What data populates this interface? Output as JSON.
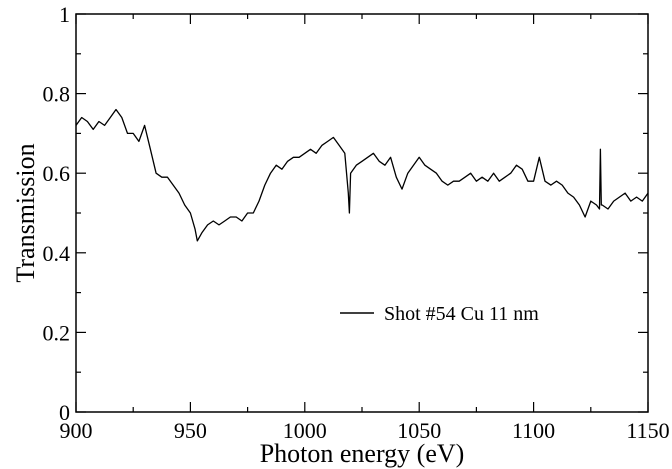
{
  "chart_data": {
    "type": "line",
    "title": "",
    "xlabel": "Photon energy (eV)",
    "ylabel": "Transmission",
    "xlim": [
      900,
      1150
    ],
    "ylim": [
      0,
      1
    ],
    "grid": false,
    "legend_position": "center-right",
    "x_ticks": [
      900,
      950,
      1000,
      1050,
      1100,
      1150
    ],
    "x_tick_labels": [
      "900",
      "950",
      "1000",
      "1050",
      "1100",
      "1150"
    ],
    "y_ticks": [
      0,
      0.2,
      0.4,
      0.6,
      0.8,
      1
    ],
    "y_tick_labels": [
      "0",
      "0.2",
      "0.4",
      "0.6",
      "0.8",
      "1"
    ],
    "series": [
      {
        "name": "Shot #54 Cu 11 nm",
        "color": "#000000",
        "x": [
          900,
          902.5,
          905,
          907.5,
          910,
          912.5,
          915,
          917.5,
          920,
          922.5,
          925,
          927.5,
          930,
          932.5,
          935,
          937.5,
          940,
          942.5,
          945,
          947.5,
          950,
          952,
          953,
          955,
          957.5,
          960,
          962.5,
          965,
          967.5,
          970,
          972.5,
          975,
          977.5,
          980,
          982.5,
          985,
          987.5,
          990,
          992.5,
          995,
          997.5,
          1000,
          1002.5,
          1005,
          1007.5,
          1010,
          1012.5,
          1015,
          1017.5,
          1019,
          1019.5,
          1020,
          1022.5,
          1025,
          1027.5,
          1030,
          1032.5,
          1035,
          1037.5,
          1040,
          1042.5,
          1045,
          1047.5,
          1050,
          1052.5,
          1055,
          1057.5,
          1060,
          1062.5,
          1065,
          1067.5,
          1070,
          1072.5,
          1075,
          1077.5,
          1080,
          1082.5,
          1085,
          1087.5,
          1090,
          1092.5,
          1095,
          1097.5,
          1100,
          1102.5,
          1105,
          1107.5,
          1110,
          1112.5,
          1115,
          1117.5,
          1120,
          1122.5,
          1125,
          1127.5,
          1128.8,
          1129.2,
          1129.6,
          1130,
          1132.5,
          1135,
          1137.5,
          1140,
          1142.5,
          1145,
          1147.5,
          1150
        ],
        "y": [
          0.72,
          0.74,
          0.73,
          0.71,
          0.73,
          0.72,
          0.74,
          0.76,
          0.74,
          0.7,
          0.7,
          0.68,
          0.72,
          0.66,
          0.6,
          0.59,
          0.59,
          0.57,
          0.55,
          0.52,
          0.5,
          0.46,
          0.43,
          0.45,
          0.47,
          0.48,
          0.47,
          0.48,
          0.49,
          0.49,
          0.48,
          0.5,
          0.5,
          0.53,
          0.57,
          0.6,
          0.62,
          0.61,
          0.63,
          0.64,
          0.64,
          0.65,
          0.66,
          0.65,
          0.67,
          0.68,
          0.69,
          0.67,
          0.65,
          0.55,
          0.5,
          0.6,
          0.62,
          0.63,
          0.64,
          0.65,
          0.63,
          0.62,
          0.64,
          0.59,
          0.56,
          0.6,
          0.62,
          0.64,
          0.62,
          0.61,
          0.6,
          0.58,
          0.57,
          0.58,
          0.58,
          0.59,
          0.6,
          0.58,
          0.59,
          0.58,
          0.6,
          0.58,
          0.59,
          0.6,
          0.62,
          0.61,
          0.58,
          0.58,
          0.64,
          0.58,
          0.57,
          0.58,
          0.57,
          0.55,
          0.54,
          0.52,
          0.49,
          0.53,
          0.52,
          0.51,
          0.66,
          0.52,
          0.52,
          0.51,
          0.53,
          0.54,
          0.55,
          0.53,
          0.54,
          0.53,
          0.55
        ]
      }
    ]
  }
}
